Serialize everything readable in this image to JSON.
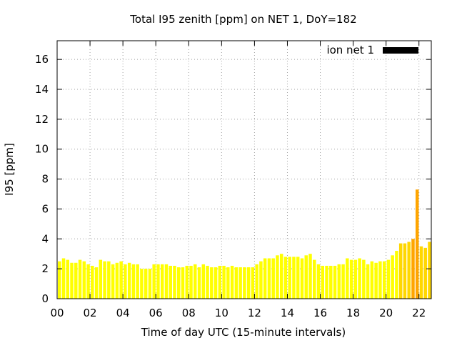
{
  "chart_data": {
    "type": "bar",
    "title": "Total I95 zenith [ppm] on NET 1, DoY=182",
    "xlabel": "Time of day UTC (15-minute intervals)",
    "ylabel": "I95 [ppm]",
    "xlim": [
      0,
      22.75
    ],
    "ylim": [
      0,
      17.25
    ],
    "x_ticks": [
      "00",
      "02",
      "04",
      "06",
      "08",
      "10",
      "12",
      "14",
      "16",
      "18",
      "20",
      "22"
    ],
    "x_tick_values": [
      0,
      2,
      4,
      6,
      8,
      10,
      12,
      14,
      16,
      18,
      20,
      22
    ],
    "y_ticks": [
      "0",
      "2",
      "4",
      "6",
      "8",
      "10",
      "12",
      "14",
      "16"
    ],
    "y_tick_values": [
      0,
      2,
      4,
      6,
      8,
      10,
      12,
      14,
      16
    ],
    "grid": true,
    "legend": {
      "position": "top-right",
      "entries": [
        {
          "label": "ion net 1",
          "color": "#000000"
        }
      ]
    },
    "colors": {
      "low": "#ffff00",
      "mid": "#ffd700",
      "high": "#ffa500"
    },
    "interval_hours": 0.25,
    "series": [
      {
        "name": "ion net 1",
        "values": [
          2.5,
          2.7,
          2.6,
          2.4,
          2.4,
          2.6,
          2.5,
          2.3,
          2.2,
          2.1,
          2.6,
          2.5,
          2.5,
          2.3,
          2.4,
          2.5,
          2.3,
          2.4,
          2.3,
          2.3,
          2.0,
          2.0,
          2.0,
          2.3,
          2.3,
          2.3,
          2.3,
          2.2,
          2.2,
          2.1,
          2.1,
          2.2,
          2.2,
          2.3,
          2.1,
          2.3,
          2.2,
          2.1,
          2.1,
          2.2,
          2.2,
          2.1,
          2.2,
          2.1,
          2.1,
          2.1,
          2.1,
          2.1,
          2.3,
          2.5,
          2.7,
          2.7,
          2.7,
          2.9,
          3.0,
          2.8,
          2.8,
          2.8,
          2.8,
          2.7,
          2.9,
          3.0,
          2.6,
          2.3,
          2.2,
          2.2,
          2.2,
          2.2,
          2.3,
          2.3,
          2.7,
          2.6,
          2.6,
          2.7,
          2.6,
          2.3,
          2.5,
          2.4,
          2.5,
          2.5,
          2.6,
          2.9,
          3.2,
          3.7,
          3.7,
          3.8,
          4.0,
          7.3,
          3.5,
          3.4,
          3.8
        ]
      }
    ]
  }
}
